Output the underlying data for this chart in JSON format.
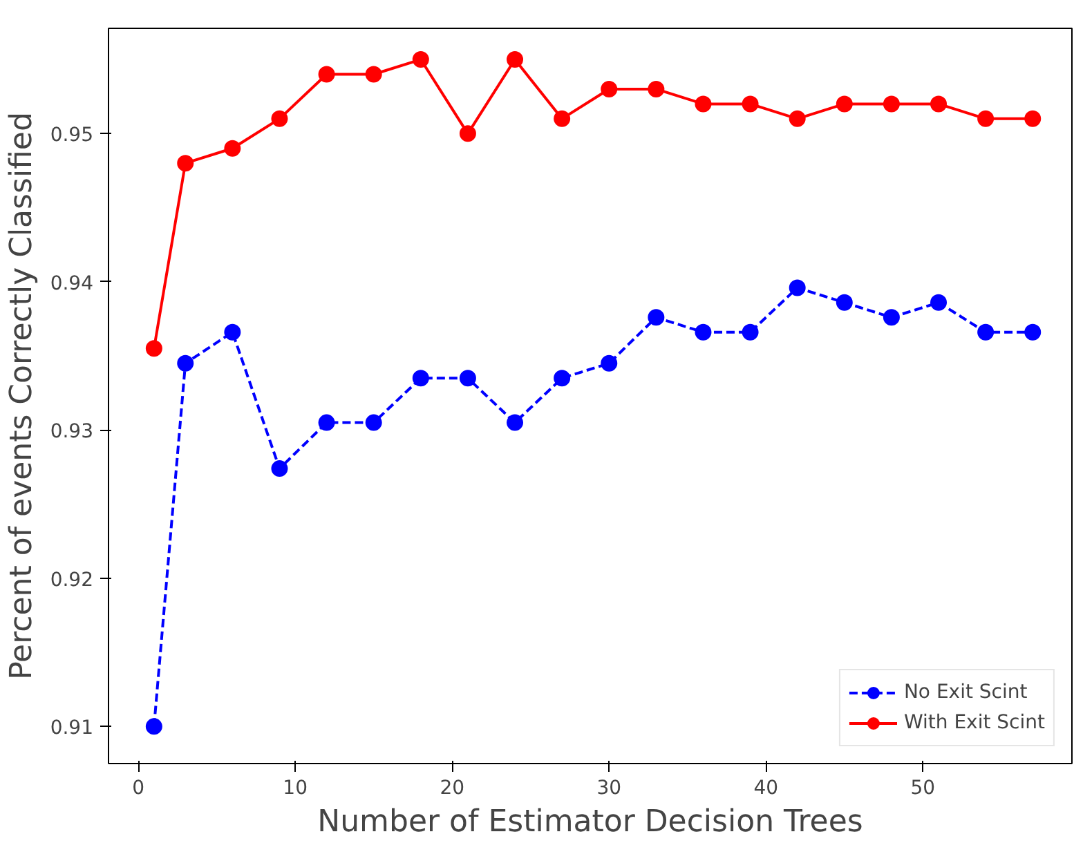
{
  "chart_data": {
    "type": "line",
    "xlabel": "Number of Estimator Decision Trees",
    "ylabel": "Percent of events Correctly Classified",
    "x": [
      1,
      3,
      6,
      9,
      12,
      15,
      18,
      21,
      24,
      27,
      30,
      33,
      36,
      39,
      42,
      45,
      48,
      51,
      54,
      57
    ],
    "series": [
      {
        "name": "No Exit Scint",
        "color": "#0000ff",
        "line_style": "dashed",
        "marker": "circle",
        "values": [
          0.91,
          0.9345,
          0.9366,
          0.9274,
          0.9305,
          0.9305,
          0.9335,
          0.9335,
          0.9305,
          0.9335,
          0.9345,
          0.9376,
          0.9366,
          0.9366,
          0.9396,
          0.9386,
          0.9376,
          0.9386,
          0.9366,
          0.9366
        ]
      },
      {
        "name": "With Exit Scint",
        "color": "#ff0000",
        "line_style": "solid",
        "marker": "circle",
        "values": [
          0.9355,
          0.948,
          0.949,
          0.951,
          0.954,
          0.954,
          0.955,
          0.95,
          0.955,
          0.951,
          0.953,
          0.953,
          0.952,
          0.952,
          0.951,
          0.952,
          0.952,
          0.952,
          0.951,
          0.951
        ]
      }
    ],
    "xlim": [
      -1.9,
      59.5
    ],
    "ylim": [
      0.9075,
      0.9571
    ],
    "xticks": [
      0,
      10,
      20,
      30,
      40,
      50
    ],
    "yticks": [
      {
        "value": 0.91,
        "label": "0.91"
      },
      {
        "value": 0.92,
        "label": "0.92"
      },
      {
        "value": 0.93,
        "label": "0.93"
      },
      {
        "value": 0.94,
        "label": "0.94"
      },
      {
        "value": 0.95,
        "label": "0.95"
      }
    ],
    "grid": false,
    "legend": "bottom right"
  }
}
